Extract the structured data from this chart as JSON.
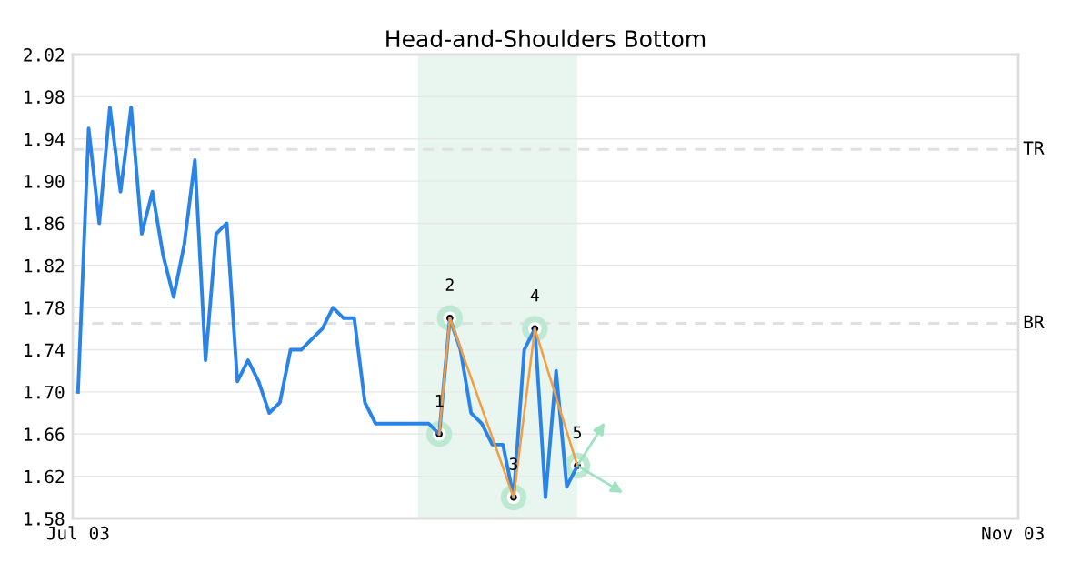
{
  "chart_data": {
    "type": "line",
    "title": "Head-and-Shoulders Bottom",
    "categories": [
      "Jul 03",
      null,
      null,
      null,
      null,
      null,
      null,
      null,
      null,
      null,
      null,
      null,
      null,
      null,
      null,
      null,
      null,
      null,
      null,
      null,
      null,
      null,
      null,
      null,
      null,
      null,
      null,
      null,
      null,
      null,
      null,
      null,
      null,
      null,
      null,
      null,
      null,
      null,
      null,
      null,
      null,
      null,
      null,
      null,
      null,
      null,
      null,
      null,
      null,
      null,
      null,
      null,
      null,
      null,
      null,
      null,
      null,
      null,
      null,
      null,
      null,
      null,
      null,
      null,
      null,
      null,
      null,
      null,
      null,
      null,
      null,
      null,
      null,
      null,
      null,
      null,
      null,
      null,
      null,
      null,
      null,
      null,
      null,
      null,
      null,
      null,
      null,
      null,
      "Nov 03"
    ],
    "series": [
      {
        "color": "#2a84e8",
        "values": [
          1.7,
          1.95,
          1.86,
          1.97,
          1.89,
          1.97,
          1.85,
          1.89,
          1.83,
          1.79,
          1.84,
          1.92,
          1.73,
          1.85,
          1.86,
          1.71,
          1.73,
          1.71,
          1.68,
          1.69,
          1.74,
          1.74,
          1.75,
          1.76,
          1.78,
          1.77,
          1.77,
          1.69,
          1.67,
          1.67,
          1.67,
          1.67,
          1.67,
          1.67,
          1.66,
          1.77,
          1.74,
          1.68,
          1.67,
          1.65,
          1.65,
          1.6,
          1.74,
          1.76,
          1.6,
          1.72,
          1.61,
          1.63,
          null,
          null,
          null,
          null,
          null,
          null,
          null,
          null,
          null,
          null,
          null,
          null,
          null,
          null,
          null,
          null,
          null,
          null,
          null,
          null,
          null,
          null,
          null,
          null,
          null,
          null,
          null,
          null,
          null,
          null,
          null,
          null,
          null,
          null,
          null,
          null,
          null,
          null,
          null,
          null,
          null
        ]
      },
      {
        "color": "#f39c40",
        "marker": "circle",
        "values": [
          null,
          null,
          null,
          null,
          null,
          null,
          null,
          null,
          null,
          null,
          null,
          null,
          null,
          null,
          null,
          null,
          null,
          null,
          null,
          null,
          null,
          null,
          null,
          null,
          null,
          null,
          null,
          null,
          null,
          null,
          null,
          null,
          null,
          null,
          1.66,
          1.77,
          null,
          null,
          null,
          null,
          null,
          1.6,
          null,
          1.76,
          null,
          null,
          null,
          1.63,
          null,
          null,
          null,
          null,
          null,
          null,
          null,
          null,
          null,
          null,
          null,
          null,
          null,
          null,
          null,
          null,
          null,
          null,
          null,
          null,
          null,
          null,
          null,
          null,
          null,
          null,
          null,
          null,
          null,
          null,
          null,
          null,
          null,
          null,
          null,
          null,
          null,
          null,
          null,
          null,
          null
        ]
      }
    ],
    "ylim": [
      1.58,
      2.02
    ],
    "yticks": [
      1.58,
      {
        "value": 1.62,
        "label": "1.62"
      },
      {
        "value": 1.66,
        "label": "1.66"
      },
      {
        "value": 1.7,
        "label": "1.70"
      },
      1.74,
      1.78,
      1.82,
      1.86,
      {
        "value": 1.9,
        "label": "1.90"
      },
      1.94,
      1.98,
      2.02
    ],
    "grid": "y",
    "ref_lines": [
      {
        "axis": "y",
        "value": 1.93,
        "label": "TR",
        "color": "#e0e0e0",
        "line_style": "dashed"
      },
      {
        "axis": "y",
        "value": 1.765,
        "label": "BR",
        "color": "#e0e0e0",
        "line_style": "dashed"
      }
    ],
    "annotations": [
      {
        "text": "1",
        "y": 1.66
      },
      {
        "text": "2",
        "y": 1.77
      },
      {
        "text": "3",
        "y": 1.6
      },
      {
        "text": "4",
        "y": 1.76
      },
      {
        "text": "5",
        "y": 1.63
      }
    ]
  }
}
